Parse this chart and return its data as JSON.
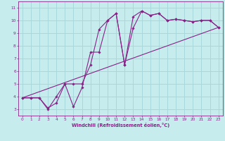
{
  "xlabel": "Windchill (Refroidissement éolien,°C)",
  "xlim": [
    -0.5,
    23.5
  ],
  "ylim": [
    2.5,
    11.5
  ],
  "xticks": [
    0,
    1,
    2,
    3,
    4,
    5,
    6,
    7,
    8,
    9,
    10,
    11,
    12,
    13,
    14,
    15,
    16,
    17,
    18,
    19,
    20,
    21,
    22,
    23
  ],
  "yticks": [
    3,
    4,
    5,
    6,
    7,
    8,
    9,
    10,
    11
  ],
  "bg_color": "#c6ecee",
  "grid_color": "#a8d8dc",
  "line_color": "#882288",
  "line1_x": [
    0,
    1,
    2,
    3,
    4,
    5,
    6,
    7,
    8,
    9,
    10,
    11,
    12,
    13,
    14,
    15,
    16,
    17,
    18,
    19,
    20,
    21,
    22,
    23
  ],
  "line1_y": [
    3.9,
    3.9,
    3.9,
    3.0,
    4.0,
    5.0,
    5.0,
    5.0,
    6.5,
    9.3,
    10.0,
    10.55,
    6.5,
    10.3,
    10.75,
    10.4,
    10.55,
    10.0,
    10.1,
    10.0,
    9.9,
    10.0,
    10.0,
    9.45
  ],
  "line2_x": [
    0,
    1,
    2,
    3,
    4,
    5,
    6,
    7,
    8,
    9,
    10,
    11,
    12,
    13,
    14,
    15,
    16,
    17,
    18,
    19,
    20,
    21,
    22,
    23
  ],
  "line2_y": [
    3.9,
    3.9,
    3.9,
    3.1,
    3.5,
    5.0,
    3.2,
    4.7,
    7.5,
    7.5,
    10.0,
    10.55,
    6.5,
    9.4,
    10.75,
    10.4,
    10.55,
    10.0,
    10.1,
    10.0,
    9.9,
    10.0,
    10.0,
    9.45
  ],
  "line3_x": [
    0,
    23
  ],
  "line3_y": [
    3.9,
    9.45
  ]
}
